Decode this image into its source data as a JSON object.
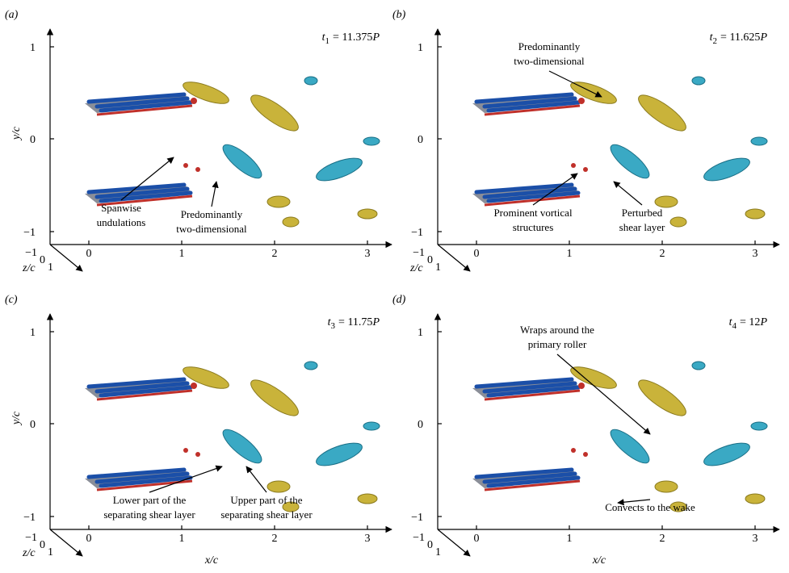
{
  "panels": [
    {
      "label": "(a)",
      "time": {
        "symbol": "t",
        "index": "1",
        "equals": "= 11.375",
        "unit": "P"
      },
      "annotations": [
        {
          "lines": [
            "Spanwise",
            "undulations"
          ]
        },
        {
          "lines": [
            "Predominantly",
            "two-dimensional"
          ]
        }
      ],
      "axis_labels": {
        "y": "y/c",
        "z": "z/c"
      }
    },
    {
      "label": "(b)",
      "time": {
        "symbol": "t",
        "index": "2",
        "equals": "= 11.625",
        "unit": "P"
      },
      "annotations": [
        {
          "lines": [
            "Predominantly",
            "two-dimensional"
          ]
        },
        {
          "lines": [
            "Prominent vortical",
            "structures"
          ]
        },
        {
          "lines": [
            "Perturbed",
            "shear layer"
          ]
        }
      ],
      "axis_labels": {
        "z": "z/c"
      }
    },
    {
      "label": "(c)",
      "time": {
        "symbol": "t",
        "index": "3",
        "equals": "= 11.75",
        "unit": "P"
      },
      "annotations": [
        {
          "lines": [
            "Lower part of the",
            "separating shear layer"
          ]
        },
        {
          "lines": [
            "Upper part of the",
            "separating shear layer"
          ]
        }
      ],
      "axis_labels": {
        "y": "y/c",
        "z": "z/c",
        "x": "x/c"
      }
    },
    {
      "label": "(d)",
      "time": {
        "symbol": "t",
        "index": "4",
        "equals": "= 12",
        "unit": "P"
      },
      "annotations": [
        {
          "lines": [
            "Wraps around the",
            "primary roller"
          ]
        },
        {
          "lines": [
            "Convects to the wake"
          ]
        }
      ],
      "axis_labels": {
        "x": "x/c"
      }
    }
  ],
  "ticks": {
    "x": [
      "0",
      "1",
      "2",
      "3"
    ],
    "y": [
      "1",
      "0",
      "−1"
    ],
    "z": [
      "−1",
      "0",
      "1"
    ]
  }
}
